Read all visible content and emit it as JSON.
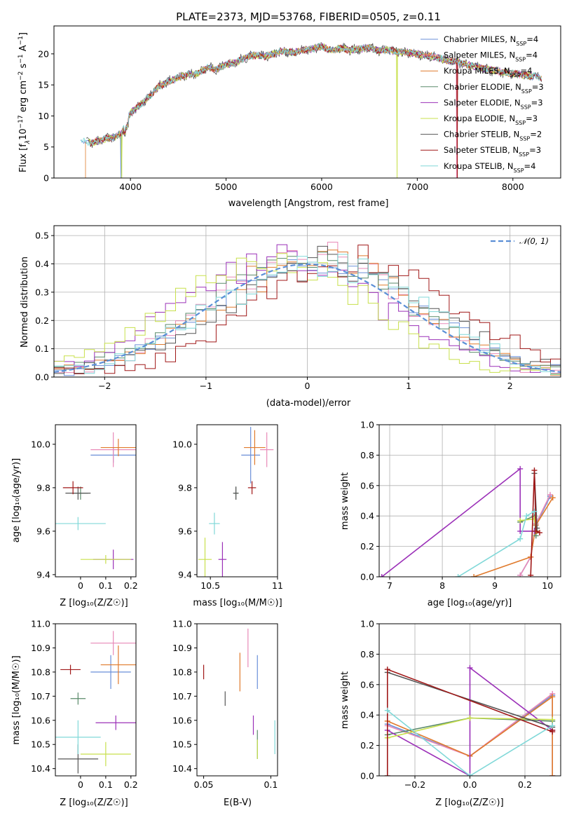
{
  "colors": {
    "models": [
      "#6a8fd8",
      "#e88ab8",
      "#e07a2c",
      "#5a8a6a",
      "#9b30b8",
      "#c8e04c",
      "#555555",
      "#a01818",
      "#80d8d8"
    ],
    "normal": "#5b8fd6",
    "grid": "#b0b0b0"
  },
  "chart_data": [
    {
      "id": "spectrum",
      "type": "line",
      "title": "PLATE=2373, MJD=53768, FIBERID=0505, z=0.11",
      "xlabel": "wavelength [Angstrom, rest frame]",
      "ylabel_parts": [
        "Flux [f",
        "λ",
        "10",
        "−17",
        " erg cm",
        "−2",
        " s",
        "−1",
        " A",
        "−1",
        "]"
      ],
      "xlim": [
        3200,
        8500
      ],
      "ylim": [
        0,
        24.5
      ],
      "xticks": [
        4000,
        5000,
        6000,
        7000,
        8000
      ],
      "yticks": [
        0,
        5,
        10,
        15,
        20
      ],
      "grid": false,
      "legend_position": "top-right",
      "series": [
        {
          "label": "Chabrier MILES, N",
          "sub": "SSP",
          "suffix": "=4"
        },
        {
          "label": "Salpeter MILES, N",
          "sub": "SSP",
          "suffix": "=4"
        },
        {
          "label": "Kroupa MILES, N",
          "sub": "SSP",
          "suffix": "=4"
        },
        {
          "label": "Chabrier ELODIE, N",
          "sub": "SSP",
          "suffix": "=3"
        },
        {
          "label": "Salpeter ELODIE, N",
          "sub": "SSP",
          "suffix": "=3"
        },
        {
          "label": "Kroupa ELODIE, N",
          "sub": "SSP",
          "suffix": "=3"
        },
        {
          "label": "Chabrier STELIB, N",
          "sub": "SSP",
          "suffix": "=2"
        },
        {
          "label": "Salpeter STELIB, N",
          "sub": "SSP",
          "suffix": "=3"
        },
        {
          "label": "Kroupa STELIB, N",
          "sub": "SSP",
          "suffix": "=4"
        }
      ],
      "continuum": {
        "x": [
          3480,
          3600,
          3700,
          3800,
          3900,
          3950,
          4000,
          4100,
          4200,
          4300,
          4400,
          4500,
          4600,
          4700,
          4800,
          4900,
          5000,
          5100,
          5200,
          5300,
          5400,
          5500,
          5600,
          5700,
          5800,
          5900,
          6000,
          6100,
          6200,
          6300,
          6400,
          6500,
          6600,
          6700,
          6800,
          6900,
          7000,
          7100,
          7200,
          7300,
          7400,
          7500,
          7600,
          7700,
          7800,
          7900,
          8000,
          8100,
          8200,
          8300
        ],
        "y": [
          6.0,
          5.6,
          6.2,
          6.5,
          7.0,
          9.0,
          10.5,
          11.8,
          13.2,
          14.8,
          15.5,
          16.2,
          16.6,
          16.8,
          17.8,
          17.5,
          18.3,
          18.6,
          19.4,
          19.8,
          19.6,
          20.0,
          20.5,
          20.2,
          20.6,
          20.8,
          21.2,
          20.5,
          20.9,
          20.6,
          20.8,
          21.0,
          20.5,
          20.6,
          20.3,
          20.2,
          20.0,
          19.8,
          19.4,
          19.0,
          18.8,
          18.3,
          18.0,
          17.6,
          17.3,
          17.0,
          16.8,
          16.6,
          16.4,
          16.2
        ]
      },
      "drops": [
        {
          "series": 2,
          "x": 3530
        },
        {
          "series": 0,
          "x": 3900
        },
        {
          "series": 5,
          "x": 3910
        },
        {
          "series": 5,
          "x": 6790
        },
        {
          "series": 1,
          "x": 7410
        },
        {
          "series": 7,
          "x": 7420
        }
      ]
    },
    {
      "id": "residuals",
      "type": "histogram",
      "xlabel": "(data-model)/error",
      "ylabel": "Normed distribution",
      "xlim": [
        -2.5,
        2.5
      ],
      "ylim": [
        0,
        0.535
      ],
      "xticks": [
        -2,
        -1,
        0,
        1,
        2
      ],
      "xtick_labels": [
        "−2",
        "−1",
        "0",
        "1",
        "2"
      ],
      "yticks": [
        0.0,
        0.1,
        0.2,
        0.3,
        0.4,
        0.5
      ],
      "grid": true,
      "legend": "𝒩(0, 1)",
      "legend_position": "top-right",
      "bin_edges": [
        -2.5,
        2.5
      ],
      "n_bins": 50
    },
    {
      "id": "age-vs-Z",
      "type": "errorbar",
      "xlabel": "Z [log₁₀(Z/Z☉)]",
      "ylabel": "age  [log₁₀(age/yr)]",
      "xlim": [
        -0.1,
        0.22
      ],
      "ylim": [
        9.39,
        10.09
      ],
      "xticks": [
        0.0,
        0.1,
        0.2
      ],
      "yticks": [
        9.4,
        9.6,
        9.8,
        10.0
      ],
      "grid": false,
      "points": [
        {
          "x": 0.13,
          "y": 9.95,
          "xerr": 0.09,
          "yerr": 0.035
        },
        {
          "x": 0.13,
          "y": 9.975,
          "xerr": 0.09,
          "yerr": 0.08
        },
        {
          "x": 0.15,
          "y": 9.985,
          "xerr": 0.07,
          "yerr": 0.04
        },
        {
          "x": 0.0,
          "y": 9.775,
          "xerr": 0.03,
          "yerr": 0.03
        },
        {
          "x": 0.13,
          "y": 9.47,
          "xerr": 0.08,
          "yerr": 0.045
        },
        {
          "x": 0.1,
          "y": 9.47,
          "xerr": 0.1,
          "yerr": 0.02
        },
        {
          "x": -0.01,
          "y": 9.775,
          "xerr": 0.05,
          "yerr": 0.03
        },
        {
          "x": -0.03,
          "y": 9.8,
          "xerr": 0.04,
          "yerr": 0.03
        },
        {
          "x": -0.01,
          "y": 9.635,
          "xerr": 0.11,
          "yerr": 0.03
        }
      ]
    },
    {
      "id": "age-vs-mass",
      "type": "errorbar",
      "xlabel": "mass [log₁₀(M/M☉)]",
      "ylabel": "",
      "xlim": [
        10.4,
        11.0
      ],
      "ylim": [
        9.39,
        10.09
      ],
      "xticks": [
        10.5,
        11.0
      ],
      "yticks": [
        9.4,
        9.6,
        9.8,
        10.0
      ],
      "grid": false,
      "points": [
        {
          "x": 10.8,
          "y": 9.95,
          "xerr": 0.07,
          "yerr": 0.13
        },
        {
          "x": 10.92,
          "y": 9.975,
          "xerr": 0.05,
          "yerr": 0.08
        },
        {
          "x": 10.83,
          "y": 9.985,
          "xerr": 0.08,
          "yerr": 0.08
        },
        {
          "x": 10.69,
          "y": 9.775,
          "xerr": 0.02,
          "yerr": 0.03
        },
        {
          "x": 10.59,
          "y": 9.47,
          "xerr": 0.03,
          "yerr": 0.08
        },
        {
          "x": 10.46,
          "y": 9.47,
          "xerr": 0.05,
          "yerr": 0.1
        },
        {
          "x": 10.69,
          "y": 9.775,
          "xerr": 0.02,
          "yerr": 0.03
        },
        {
          "x": 10.81,
          "y": 9.8,
          "xerr": 0.03,
          "yerr": 0.03
        },
        {
          "x": 10.53,
          "y": 9.635,
          "xerr": 0.04,
          "yerr": 0.05
        }
      ]
    },
    {
      "id": "weight-vs-age",
      "type": "line",
      "xlabel": "age  [log₁₀(age/yr)]",
      "ylabel": "mass weight",
      "xlim": [
        6.8,
        10.25
      ],
      "ylim": [
        0.0,
        1.0
      ],
      "xticks": [
        7,
        8,
        9,
        10
      ],
      "yticks": [
        0.0,
        0.2,
        0.4,
        0.6,
        0.8,
        1.0
      ],
      "grid": true,
      "series": [
        {
          "x": [
            9.48,
            9.68,
            9.78,
            10.05
          ],
          "y": [
            0.01,
            0.13,
            0.34,
            0.53
          ]
        },
        {
          "x": [
            9.48,
            9.68,
            9.78,
            10.05
          ],
          "y": [
            0.01,
            0.13,
            0.35,
            0.54
          ]
        },
        {
          "x": [
            8.6,
            9.68,
            9.78,
            10.1
          ],
          "y": [
            0.0,
            0.13,
            0.34,
            0.52
          ]
        },
        {
          "x": [
            9.48,
            9.75,
            9.78
          ],
          "y": [
            0.36,
            0.4,
            0.27
          ]
        },
        {
          "x": [
            6.85,
            9.48,
            9.48,
            9.75
          ],
          "y": [
            0.0,
            0.71,
            0.3,
            0.3
          ]
        },
        {
          "x": [
            9.48,
            9.75,
            9.8
          ],
          "y": [
            0.37,
            0.38,
            0.3
          ]
        },
        {
          "x": [
            9.75,
            9.8
          ],
          "y": [
            0.68,
            0.32
          ]
        },
        {
          "x": [
            9.68,
            9.75,
            9.78,
            9.85
          ],
          "y": [
            0.01,
            0.7,
            0.3,
            0.29
          ]
        },
        {
          "x": [
            8.3,
            9.48,
            9.6,
            9.75
          ],
          "y": [
            0.0,
            0.25,
            0.4,
            0.43
          ]
        }
      ]
    },
    {
      "id": "mass-vs-Z",
      "type": "errorbar",
      "xlabel": "Z [log₁₀(Z/Z☉)]",
      "ylabel": "mass [log₁₀(M/M☉)]",
      "xlim": [
        -0.1,
        0.22
      ],
      "ylim": [
        10.37,
        11.0
      ],
      "xticks": [
        0.0,
        0.1,
        0.2
      ],
      "yticks": [
        10.4,
        10.5,
        10.6,
        10.7,
        10.8,
        10.9,
        11.0
      ],
      "grid": false,
      "points": [
        {
          "x": 0.12,
          "y": 10.8,
          "xerr": 0.08,
          "yerr": 0.07
        },
        {
          "x": 0.13,
          "y": 10.92,
          "xerr": 0.09,
          "yerr": 0.05
        },
        {
          "x": 0.15,
          "y": 10.83,
          "xerr": 0.07,
          "yerr": 0.08
        },
        {
          "x": -0.01,
          "y": 10.69,
          "xerr": 0.03,
          "yerr": 0.025
        },
        {
          "x": 0.14,
          "y": 10.59,
          "xerr": 0.08,
          "yerr": 0.03
        },
        {
          "x": 0.1,
          "y": 10.46,
          "xerr": 0.1,
          "yerr": 0.05
        },
        {
          "x": -0.01,
          "y": 10.44,
          "xerr": 0.08,
          "yerr": 0.06
        },
        {
          "x": -0.04,
          "y": 10.81,
          "xerr": 0.04,
          "yerr": 0.02
        },
        {
          "x": -0.01,
          "y": 10.53,
          "xerr": 0.09,
          "yerr": 0.07
        }
      ]
    },
    {
      "id": "mass-vs-ebv",
      "type": "errorbar",
      "xlabel": "E(B-V)",
      "ylabel": "",
      "xlim": [
        0.045,
        0.105
      ],
      "ylim": [
        10.37,
        11.0
      ],
      "xticks": [
        0.05,
        0.1
      ],
      "yticks": [
        10.4,
        10.5,
        10.6,
        10.7,
        10.8,
        10.9,
        11.0
      ],
      "grid": false,
      "points": [
        {
          "x": 0.09,
          "y": 10.8,
          "xerr": 0,
          "yerr": 0.07
        },
        {
          "x": 0.083,
          "y": 10.9,
          "xerr": 0,
          "yerr": 0.08
        },
        {
          "x": 0.077,
          "y": 10.8,
          "xerr": 0,
          "yerr": 0.08
        },
        {
          "x": 0.09,
          "y": 10.5,
          "xerr": 0,
          "yerr": 0.06
        },
        {
          "x": 0.087,
          "y": 10.58,
          "xerr": 0,
          "yerr": 0.04
        },
        {
          "x": 0.09,
          "y": 10.48,
          "xerr": 0,
          "yerr": 0.04
        },
        {
          "x": 0.066,
          "y": 10.69,
          "xerr": 0,
          "yerr": 0.03
        },
        {
          "x": 0.05,
          "y": 10.8,
          "xerr": 0,
          "yerr": 0.03
        },
        {
          "x": 0.103,
          "y": 10.53,
          "xerr": 0,
          "yerr": 0.07
        }
      ]
    },
    {
      "id": "weight-vs-Z",
      "type": "line",
      "xlabel": "Z [log₁₀(Z/Z☉)]",
      "ylabel": "mass weight",
      "xlim": [
        -0.33,
        0.33
      ],
      "ylim": [
        0.0,
        1.0
      ],
      "xticks": [
        -0.2,
        0.0,
        0.2
      ],
      "xtick_labels": [
        "−0.2",
        "0.0",
        "0.2"
      ],
      "yticks": [
        0.0,
        0.2,
        0.4,
        0.6,
        0.8,
        1.0
      ],
      "grid": true,
      "series": [
        {
          "x": [
            -0.3,
            0.0,
            0.3,
            0.3
          ],
          "y": [
            0.34,
            0.13,
            0.53,
            0.0
          ]
        },
        {
          "x": [
            -0.3,
            0.0,
            0.3,
            0.3
          ],
          "y": [
            0.33,
            0.13,
            0.54,
            0.0
          ]
        },
        {
          "x": [
            -0.3,
            0.0,
            0.3,
            0.3
          ],
          "y": [
            0.36,
            0.13,
            0.52,
            0.0
          ]
        },
        {
          "x": [
            -0.3,
            0.0,
            0.3
          ],
          "y": [
            0.27,
            0.38,
            0.36
          ]
        },
        {
          "x": [
            -0.3,
            0.0,
            0.0,
            0.3
          ],
          "y": [
            0.3,
            0.0,
            0.71,
            0.3
          ]
        },
        {
          "x": [
            -0.3,
            0.0,
            0.3
          ],
          "y": [
            0.25,
            0.38,
            0.37
          ]
        },
        {
          "x": [
            -0.3,
            0.3
          ],
          "y": [
            0.68,
            0.32
          ]
        },
        {
          "x": [
            -0.3,
            -0.3,
            0.3,
            0.3
          ],
          "y": [
            0.0,
            0.7,
            0.29,
            0.3
          ]
        },
        {
          "x": [
            -0.3,
            0.0,
            0.3
          ],
          "y": [
            0.43,
            0.0,
            0.33
          ]
        }
      ]
    }
  ]
}
